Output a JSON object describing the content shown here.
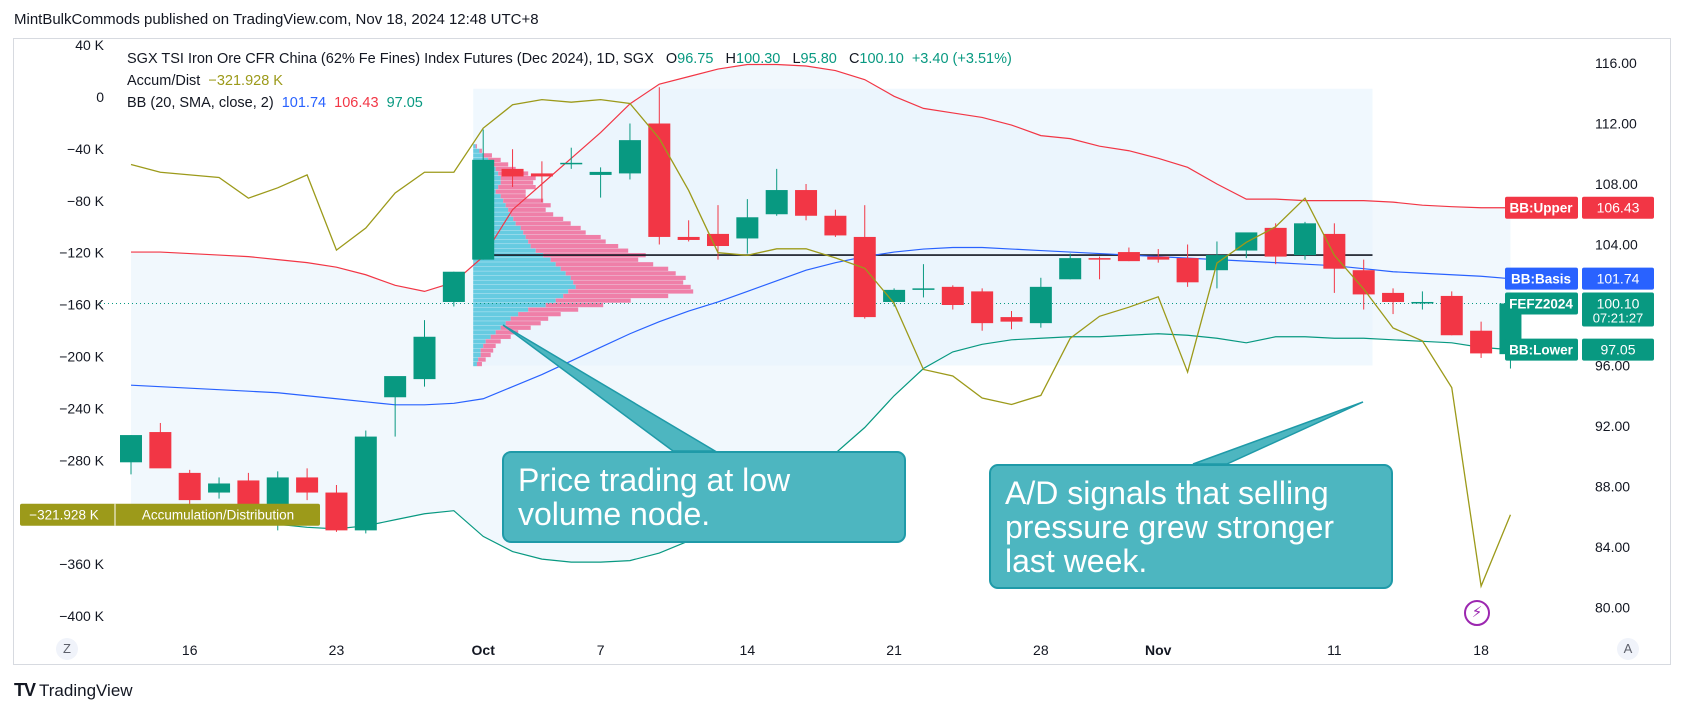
{
  "header": {
    "published_by": "MintBulkCommods published on TradingView.com, Nov 18, 2024 12:48 UTC+8"
  },
  "legend": {
    "symbol": "SGX TSI Iron Ore CFR China (62% Fe Fines) Index Futures (Dec 2024), 1D, SGX",
    "o_label": "O",
    "o_value": "96.75",
    "h_label": "H",
    "h_value": "100.30",
    "l_label": "L",
    "l_value": "95.80",
    "c_label": "C",
    "c_value": "100.10",
    "change": "+3.40 (+3.51%)",
    "ad_label": "Accum/Dist",
    "ad_value": "−321.928 K",
    "bb_label": "BB (20, SMA, close, 2)",
    "bb_basis": "101.74",
    "bb_upper": "106.43",
    "bb_lower": "97.05"
  },
  "callouts": {
    "lvn": "Price trading at low\nvolume node.",
    "ad": "A/D signals that selling\npressure grew stronger\nlast week."
  },
  "footer": {
    "logo_mark": "TV",
    "logo_text": "TradingView",
    "left_button": "Z",
    "right_button": "A"
  },
  "colors": {
    "up": "#089981",
    "down": "#f23645",
    "bb_upper": "#f23645",
    "bb_basis": "#2962ff",
    "bb_lower": "#089981",
    "ad_line": "#9c9a1a",
    "band_fill": "#e8f4fb",
    "vp_up": "#4fc3dc",
    "vp_down": "#f06292",
    "callout": "#4db6c0"
  },
  "chart_data": {
    "type": "candlestick",
    "y_right": {
      "ticks": [
        "80.00",
        "84.00",
        "88.00",
        "92.00",
        "96.00",
        "100.00",
        "104.00",
        "108.00",
        "112.00",
        "116.00"
      ],
      "range": [
        79,
        117
      ]
    },
    "y_left": {
      "ticks": [
        "40 K",
        "0",
        "−40 K",
        "−80 K",
        "−120 K",
        "−160 K",
        "−200 K",
        "−240 K",
        "−280 K",
        "−320 K",
        "−360 K",
        "−400 K"
      ],
      "range": [
        -410,
        40
      ]
    },
    "x_labels": [
      {
        "label": "16",
        "i": 2,
        "bold": false
      },
      {
        "label": "23",
        "i": 7,
        "bold": false
      },
      {
        "label": "Oct",
        "i": 12,
        "bold": true
      },
      {
        "label": "7",
        "i": 16,
        "bold": false
      },
      {
        "label": "14",
        "i": 21,
        "bold": false
      },
      {
        "label": "21",
        "i": 26,
        "bold": false
      },
      {
        "label": "28",
        "i": 31,
        "bold": false
      },
      {
        "label": "Nov",
        "i": 35,
        "bold": true
      },
      {
        "label": "11",
        "i": 41,
        "bold": false
      },
      {
        "label": "18",
        "i": 46,
        "bold": false
      }
    ],
    "candles": [
      {
        "o": 89.6,
        "h": 91.4,
        "l": 88.8,
        "c": 91.4
      },
      {
        "o": 91.6,
        "h": 92.2,
        "l": 89.3,
        "c": 89.2
      },
      {
        "o": 88.9,
        "h": 89.1,
        "l": 86.8,
        "c": 87.1
      },
      {
        "o": 87.6,
        "h": 88.6,
        "l": 87.2,
        "c": 88.2
      },
      {
        "o": 88.4,
        "h": 88.9,
        "l": 86.1,
        "c": 86.8
      },
      {
        "o": 86.6,
        "h": 89.0,
        "l": 85.1,
        "c": 88.6
      },
      {
        "o": 88.6,
        "h": 89.2,
        "l": 87.1,
        "c": 87.6
      },
      {
        "o": 87.6,
        "h": 88.1,
        "l": 85.0,
        "c": 85.1
      },
      {
        "o": 85.1,
        "h": 91.7,
        "l": 84.9,
        "c": 91.3
      },
      {
        "o": 93.9,
        "h": 94.4,
        "l": 91.3,
        "c": 95.3
      },
      {
        "o": 95.1,
        "h": 99.0,
        "l": 94.6,
        "c": 97.9
      },
      {
        "o": 100.2,
        "h": 102.2,
        "l": 99.9,
        "c": 102.2
      },
      {
        "o": 103.0,
        "h": 111.6,
        "l": 103.0,
        "c": 109.6
      },
      {
        "o": 109.0,
        "h": 110.3,
        "l": 107.8,
        "c": 108.5
      },
      {
        "o": 108.7,
        "h": 109.5,
        "l": 106.8,
        "c": 108.5
      },
      {
        "o": 109.4,
        "h": 110.4,
        "l": 109.0,
        "c": 109.4
      },
      {
        "o": 108.6,
        "h": 109.1,
        "l": 107.1,
        "c": 108.8
      },
      {
        "o": 108.7,
        "h": 112.0,
        "l": 108.3,
        "c": 110.9
      },
      {
        "o": 112.0,
        "h": 114.4,
        "l": 104.0,
        "c": 104.5
      },
      {
        "o": 104.5,
        "h": 105.6,
        "l": 104.2,
        "c": 104.3
      },
      {
        "o": 104.7,
        "h": 106.6,
        "l": 103.0,
        "c": 103.9
      },
      {
        "o": 104.4,
        "h": 107.0,
        "l": 103.4,
        "c": 105.8
      },
      {
        "o": 106.0,
        "h": 109.0,
        "l": 105.9,
        "c": 107.6
      },
      {
        "o": 107.6,
        "h": 108.0,
        "l": 105.6,
        "c": 105.9
      },
      {
        "o": 105.9,
        "h": 106.3,
        "l": 104.5,
        "c": 104.6
      },
      {
        "o": 104.5,
        "h": 106.6,
        "l": 99.1,
        "c": 99.2
      },
      {
        "o": 100.2,
        "h": 101.1,
        "l": 99.9,
        "c": 101.0
      },
      {
        "o": 101.0,
        "h": 102.7,
        "l": 100.5,
        "c": 101.1
      },
      {
        "o": 101.2,
        "h": 101.3,
        "l": 99.7,
        "c": 100.0
      },
      {
        "o": 100.9,
        "h": 101.1,
        "l": 98.3,
        "c": 98.8
      },
      {
        "o": 99.2,
        "h": 99.6,
        "l": 98.4,
        "c": 98.9
      },
      {
        "o": 98.8,
        "h": 101.8,
        "l": 98.5,
        "c": 101.2
      },
      {
        "o": 101.7,
        "h": 103.4,
        "l": 101.7,
        "c": 103.1
      },
      {
        "o": 103.1,
        "h": 103.2,
        "l": 101.7,
        "c": 103.0
      },
      {
        "o": 103.5,
        "h": 103.8,
        "l": 102.9,
        "c": 102.9
      },
      {
        "o": 103.2,
        "h": 103.7,
        "l": 102.8,
        "c": 103.0
      },
      {
        "o": 103.1,
        "h": 104.0,
        "l": 101.2,
        "c": 101.5
      },
      {
        "o": 102.3,
        "h": 104.2,
        "l": 101.1,
        "c": 103.3
      },
      {
        "o": 103.6,
        "h": 104.5,
        "l": 103.1,
        "c": 104.8
      },
      {
        "o": 105.1,
        "h": 105.4,
        "l": 102.7,
        "c": 103.2
      },
      {
        "o": 103.3,
        "h": 105.5,
        "l": 103.0,
        "c": 105.4
      },
      {
        "o": 104.7,
        "h": 105.4,
        "l": 100.8,
        "c": 102.4
      },
      {
        "o": 102.3,
        "h": 103.0,
        "l": 99.7,
        "c": 100.7
      },
      {
        "o": 100.8,
        "h": 101.1,
        "l": 99.4,
        "c": 100.2
      },
      {
        "o": 100.2,
        "h": 100.9,
        "l": 99.7,
        "c": 100.2
      },
      {
        "o": 100.6,
        "h": 100.9,
        "l": 98.0,
        "c": 98.0
      },
      {
        "o": 98.3,
        "h": 98.9,
        "l": 96.5,
        "c": 96.8
      },
      {
        "o": 96.75,
        "h": 100.3,
        "l": 95.8,
        "c": 100.1
      }
    ],
    "bb_upper": [
      103.5,
      103.5,
      103.4,
      103.3,
      103.2,
      103.0,
      102.8,
      102.5,
      102.0,
      101.3,
      100.9,
      101.5,
      103.2,
      106.3,
      108.0,
      109.7,
      111.4,
      113.3,
      114.6,
      115.1,
      115.6,
      115.9,
      115.9,
      115.8,
      115.5,
      114.9,
      113.8,
      113.0,
      112.7,
      112.4,
      111.9,
      111.2,
      111.0,
      110.5,
      110.2,
      109.7,
      109.1,
      108.0,
      107.0,
      107.0,
      106.9,
      106.9,
      106.9,
      106.8,
      106.6,
      106.5,
      106.43,
      106.43
    ],
    "bb_basis": [
      94.7,
      94.6,
      94.5,
      94.4,
      94.3,
      94.2,
      94.0,
      93.8,
      93.6,
      93.4,
      93.4,
      93.5,
      93.8,
      94.6,
      95.4,
      96.3,
      97.2,
      98.1,
      98.9,
      99.6,
      100.2,
      100.9,
      101.6,
      102.3,
      102.8,
      103.2,
      103.5,
      103.7,
      103.8,
      103.8,
      103.7,
      103.6,
      103.5,
      103.4,
      103.3,
      103.2,
      103.1,
      103.0,
      102.9,
      102.8,
      102.7,
      102.6,
      102.4,
      102.2,
      102.1,
      102.0,
      101.9,
      101.74
    ],
    "bb_lower": [
      86.1,
      86.0,
      85.9,
      85.8,
      85.6,
      85.5,
      85.3,
      85.2,
      85.4,
      85.8,
      86.2,
      86.4,
      84.7,
      83.7,
      83.2,
      83.0,
      83.0,
      83.1,
      83.6,
      84.4,
      85.5,
      86.8,
      87.8,
      89.0,
      90.2,
      91.9,
      94.0,
      95.8,
      96.9,
      97.4,
      97.7,
      97.8,
      97.9,
      97.9,
      98.0,
      98.1,
      98.0,
      97.8,
      97.5,
      97.9,
      97.9,
      97.8,
      97.8,
      97.7,
      97.6,
      97.5,
      97.2,
      97.05
    ],
    "ad": [
      -52,
      -58,
      -60,
      -62,
      -78,
      -70,
      -60,
      -118,
      -101,
      -74,
      -58,
      -58,
      -24,
      -6,
      -2,
      -4,
      -2,
      -5,
      -32,
      -72,
      -120,
      -122,
      -117,
      -117,
      -124,
      -132,
      -159,
      -210,
      -215,
      -232,
      -237,
      -230,
      -186,
      -169,
      -162,
      -154,
      -212,
      -128,
      -112,
      -100,
      -78,
      -122,
      -148,
      -178,
      -188,
      -224,
      -377,
      -321.928
    ],
    "vp_base_date_i": 12.0,
    "volume_profile": [
      {
        "p": 110.5,
        "up": 2,
        "down": 1
      },
      {
        "p": 110.2,
        "up": 5,
        "down": 2
      },
      {
        "p": 109.9,
        "up": 8,
        "down": 7
      },
      {
        "p": 109.6,
        "up": 12,
        "down": 10
      },
      {
        "p": 109.3,
        "up": 16,
        "down": 12
      },
      {
        "p": 109.0,
        "up": 18,
        "down": 16
      },
      {
        "p": 108.7,
        "up": 20,
        "down": 24
      },
      {
        "p": 108.4,
        "up": 22,
        "down": 28
      },
      {
        "p": 108.1,
        "up": 22,
        "down": 26
      },
      {
        "p": 107.8,
        "up": 20,
        "down": 30
      },
      {
        "p": 107.5,
        "up": 18,
        "down": 24
      },
      {
        "p": 107.2,
        "up": 22,
        "down": 20
      },
      {
        "p": 106.9,
        "up": 24,
        "down": 32
      },
      {
        "p": 106.6,
        "up": 26,
        "down": 36
      },
      {
        "p": 106.3,
        "up": 28,
        "down": 30
      },
      {
        "p": 106.0,
        "up": 30,
        "down": 34
      },
      {
        "p": 105.7,
        "up": 32,
        "down": 40
      },
      {
        "p": 105.4,
        "up": 34,
        "down": 44
      },
      {
        "p": 105.1,
        "up": 38,
        "down": 48
      },
      {
        "p": 104.8,
        "up": 40,
        "down": 50
      },
      {
        "p": 104.5,
        "up": 42,
        "down": 60
      },
      {
        "p": 104.2,
        "up": 44,
        "down": 62
      },
      {
        "p": 103.9,
        "up": 46,
        "down": 70
      },
      {
        "p": 103.6,
        "up": 50,
        "down": 74
      },
      {
        "p": 103.3,
        "up": 56,
        "down": 82
      },
      {
        "p": 103.0,
        "up": 62,
        "down": 70
      },
      {
        "p": 102.7,
        "up": 66,
        "down": 78
      },
      {
        "p": 102.4,
        "up": 70,
        "down": 86
      },
      {
        "p": 102.1,
        "up": 74,
        "down": 88
      },
      {
        "p": 101.8,
        "up": 78,
        "down": 92
      },
      {
        "p": 101.5,
        "up": 80,
        "down": 88
      },
      {
        "p": 101.2,
        "up": 82,
        "down": 92
      },
      {
        "p": 100.9,
        "up": 76,
        "down": 100
      },
      {
        "p": 100.6,
        "up": 72,
        "down": 84
      },
      {
        "p": 100.3,
        "up": 66,
        "down": 60
      },
      {
        "p": 100.0,
        "up": 58,
        "down": 46
      },
      {
        "p": 99.7,
        "up": 44,
        "down": 40
      },
      {
        "p": 99.4,
        "up": 36,
        "down": 34
      },
      {
        "p": 99.1,
        "up": 30,
        "down": 30
      },
      {
        "p": 98.8,
        "up": 26,
        "down": 28
      },
      {
        "p": 98.5,
        "up": 22,
        "down": 24
      },
      {
        "p": 98.2,
        "up": 18,
        "down": 18
      },
      {
        "p": 97.9,
        "up": 14,
        "down": 16
      },
      {
        "p": 97.6,
        "up": 10,
        "down": 12
      },
      {
        "p": 97.3,
        "up": 8,
        "down": 10
      },
      {
        "p": 97.0,
        "up": 6,
        "down": 10
      },
      {
        "p": 96.7,
        "up": 6,
        "down": 8
      },
      {
        "p": 96.4,
        "up": 4,
        "down": 6
      },
      {
        "p": 96.1,
        "up": 3,
        "down": 4
      }
    ],
    "poc_price": 103.3,
    "value_area": {
      "high": 114.3,
      "low": 96.0,
      "end_i": 42.3
    },
    "price_line": 100.1,
    "price_labels": [
      {
        "text": "BB:Upper",
        "value_text": "106.43",
        "y": 106.43,
        "color": "#f23645"
      },
      {
        "text": "BB:Basis",
        "value_text": "101.74",
        "y": 101.74,
        "color": "#2962ff"
      },
      {
        "text": "FEFZ2024",
        "value_text": "100.10",
        "sub_text": "07:21:27",
        "y": 100.1,
        "color": "#089981"
      },
      {
        "text": "BB:Lower",
        "value_text": "97.05",
        "y": 97.05,
        "color": "#089981"
      }
    ],
    "ad_badge": {
      "value_text": "−321.928 K",
      "text": "Accumulation/Distribution",
      "color": "#9c9a1a"
    }
  }
}
